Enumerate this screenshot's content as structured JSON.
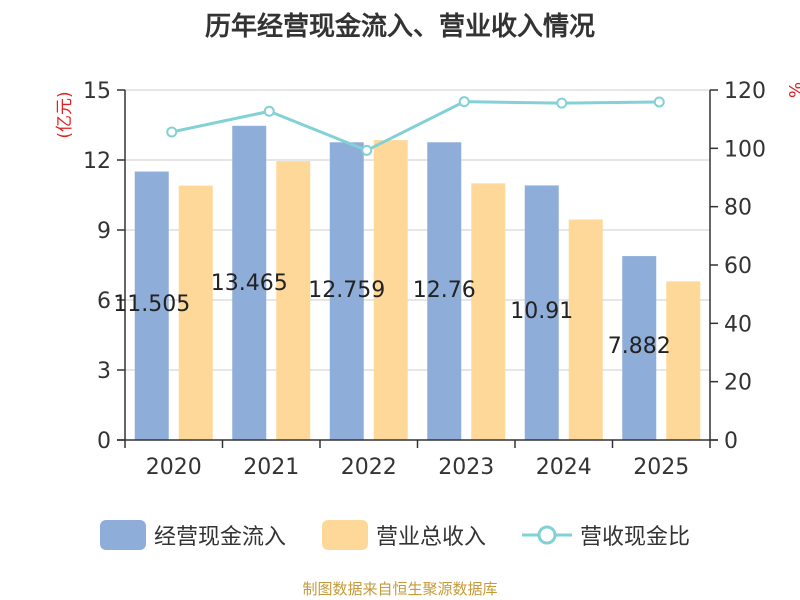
{
  "title": "历年经营现金流入、营业收入情况",
  "source": "制图数据来自恒生聚源数据库",
  "colors": {
    "cash_inflow": "#8fadd9",
    "revenue": "#fdd899",
    "ratio": "#82d1d6",
    "axis_unit": "#e02020",
    "text": "#333333"
  },
  "legend": {
    "cash_inflow": "经营现金流入",
    "revenue": "营业总收入",
    "ratio": "营收现金比"
  },
  "chart_data": {
    "type": "bar",
    "categories": [
      "2020",
      "2021",
      "2022",
      "2023",
      "2024",
      "2025"
    ],
    "series": [
      {
        "name": "经营现金流入",
        "type": "bar",
        "axis": "left",
        "values": [
          11.505,
          13.465,
          12.759,
          12.76,
          10.91,
          7.882
        ],
        "labels": [
          "11.505",
          "13.465",
          "12.759",
          "12.76",
          "10.91",
          "7.882"
        ]
      },
      {
        "name": "营业总收入",
        "type": "bar",
        "axis": "left",
        "values": [
          10.9,
          11.95,
          12.85,
          11.0,
          9.45,
          6.8
        ]
      },
      {
        "name": "营收现金比",
        "type": "line",
        "axis": "right",
        "values": [
          105.6,
          112.7,
          99.3,
          116.0,
          115.5,
          115.9
        ]
      }
    ],
    "left_axis": {
      "label": "(亿元)",
      "ylim": [
        0,
        15
      ],
      "ticks": [
        "0",
        "3",
        "6",
        "9",
        "12",
        "15"
      ]
    },
    "right_axis": {
      "label": "%",
      "ylim": [
        0,
        120
      ],
      "ticks": [
        "0",
        "20",
        "40",
        "60",
        "80",
        "100",
        "120"
      ]
    },
    "grid": true,
    "legend_position": "bottom"
  }
}
